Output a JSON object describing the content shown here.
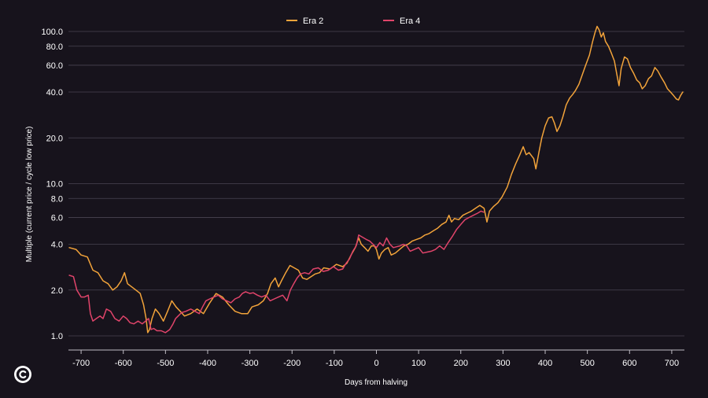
{
  "colors": {
    "background": "#17131c",
    "grid": "#4a4452",
    "axis": "#bfbcc4",
    "text": "#ffffff",
    "era2": "#f2a33a",
    "era4": "#e0446a"
  },
  "chart_data": {
    "type": "line",
    "title": "",
    "xlabel": "Days from halving",
    "ylabel": "Multiple (current price / cycle low price)",
    "yscale": "log",
    "xlim": [
      -730,
      730
    ],
    "ylim": [
      0.95,
      130
    ],
    "grid": true,
    "legend_position": "top-center",
    "x_ticks": [
      -700,
      -600,
      -500,
      -400,
      -300,
      -200,
      -100,
      0,
      100,
      200,
      300,
      400,
      500,
      600,
      700
    ],
    "x_tick_labels": [
      "-700",
      "-600",
      "-500",
      "-400",
      "-300",
      "-200",
      "-100",
      "0",
      "100",
      "200",
      "300",
      "400",
      "500",
      "600",
      "700"
    ],
    "y_ticks": [
      1,
      2,
      4,
      6,
      8,
      10,
      20,
      40,
      60,
      80,
      100
    ],
    "y_tick_labels": [
      "1.0",
      "2.0",
      "4.0",
      "6.0",
      "8.0",
      "10.0",
      "20.0",
      "40.0",
      "60.0",
      "80.0",
      "100.0"
    ],
    "series": [
      {
        "name": "Era 2",
        "color": "#f2a33a",
        "points": [
          [
            -728,
            3.8
          ],
          [
            -712,
            3.7
          ],
          [
            -700,
            3.4
          ],
          [
            -685,
            3.3
          ],
          [
            -672,
            2.7
          ],
          [
            -660,
            2.6
          ],
          [
            -648,
            2.3
          ],
          [
            -636,
            2.2
          ],
          [
            -625,
            2.0
          ],
          [
            -615,
            2.1
          ],
          [
            -605,
            2.3
          ],
          [
            -597,
            2.6
          ],
          [
            -590,
            2.2
          ],
          [
            -580,
            2.1
          ],
          [
            -570,
            2.0
          ],
          [
            -560,
            1.9
          ],
          [
            -552,
            1.6
          ],
          [
            -546,
            1.3
          ],
          [
            -542,
            1.05
          ],
          [
            -538,
            1.1
          ],
          [
            -532,
            1.3
          ],
          [
            -524,
            1.5
          ],
          [
            -515,
            1.4
          ],
          [
            -505,
            1.25
          ],
          [
            -495,
            1.45
          ],
          [
            -485,
            1.7
          ],
          [
            -475,
            1.55
          ],
          [
            -465,
            1.45
          ],
          [
            -455,
            1.35
          ],
          [
            -440,
            1.4
          ],
          [
            -425,
            1.5
          ],
          [
            -410,
            1.4
          ],
          [
            -395,
            1.65
          ],
          [
            -380,
            1.9
          ],
          [
            -365,
            1.8
          ],
          [
            -350,
            1.6
          ],
          [
            -335,
            1.45
          ],
          [
            -320,
            1.4
          ],
          [
            -305,
            1.4
          ],
          [
            -295,
            1.55
          ],
          [
            -280,
            1.6
          ],
          [
            -268,
            1.7
          ],
          [
            -258,
            1.9
          ],
          [
            -250,
            2.2
          ],
          [
            -240,
            2.4
          ],
          [
            -232,
            2.1
          ],
          [
            -225,
            2.3
          ],
          [
            -215,
            2.6
          ],
          [
            -205,
            2.9
          ],
          [
            -195,
            2.8
          ],
          [
            -185,
            2.7
          ],
          [
            -175,
            2.4
          ],
          [
            -165,
            2.35
          ],
          [
            -155,
            2.45
          ],
          [
            -145,
            2.55
          ],
          [
            -135,
            2.6
          ],
          [
            -125,
            2.8
          ],
          [
            -110,
            2.75
          ],
          [
            -95,
            2.95
          ],
          [
            -80,
            2.85
          ],
          [
            -70,
            3.0
          ],
          [
            -60,
            3.4
          ],
          [
            -50,
            3.8
          ],
          [
            -42,
            4.4
          ],
          [
            -36,
            4.0
          ],
          [
            -28,
            3.8
          ],
          [
            -20,
            3.6
          ],
          [
            -12,
            3.9
          ],
          [
            -5,
            3.9
          ],
          [
            0,
            3.7
          ],
          [
            6,
            3.2
          ],
          [
            12,
            3.5
          ],
          [
            20,
            3.7
          ],
          [
            28,
            3.8
          ],
          [
            35,
            3.4
          ],
          [
            45,
            3.5
          ],
          [
            55,
            3.7
          ],
          [
            65,
            3.9
          ],
          [
            75,
            4.0
          ],
          [
            85,
            4.2
          ],
          [
            95,
            4.3
          ],
          [
            105,
            4.4
          ],
          [
            115,
            4.6
          ],
          [
            125,
            4.7
          ],
          [
            135,
            4.9
          ],
          [
            145,
            5.1
          ],
          [
            155,
            5.4
          ],
          [
            165,
            5.6
          ],
          [
            172,
            6.2
          ],
          [
            178,
            5.6
          ],
          [
            185,
            5.9
          ],
          [
            195,
            5.8
          ],
          [
            205,
            6.2
          ],
          [
            215,
            6.4
          ],
          [
            225,
            6.6
          ],
          [
            235,
            6.9
          ],
          [
            245,
            7.2
          ],
          [
            255,
            6.9
          ],
          [
            262,
            5.6
          ],
          [
            268,
            6.6
          ],
          [
            278,
            7.1
          ],
          [
            288,
            7.5
          ],
          [
            298,
            8.2
          ],
          [
            310,
            9.5
          ],
          [
            320,
            11.5
          ],
          [
            330,
            13.5
          ],
          [
            340,
            15.5
          ],
          [
            348,
            17.5
          ],
          [
            355,
            15.5
          ],
          [
            362,
            16.0
          ],
          [
            368,
            15.2
          ],
          [
            373,
            14.6
          ],
          [
            378,
            12.5
          ],
          [
            385,
            16.0
          ],
          [
            392,
            20.0
          ],
          [
            400,
            24.0
          ],
          [
            408,
            27.0
          ],
          [
            416,
            27.5
          ],
          [
            422,
            25.0
          ],
          [
            428,
            22.0
          ],
          [
            435,
            24.0
          ],
          [
            442,
            27.5
          ],
          [
            450,
            33.0
          ],
          [
            458,
            36.5
          ],
          [
            465,
            38.5
          ],
          [
            472,
            41.0
          ],
          [
            480,
            45.0
          ],
          [
            488,
            52.0
          ],
          [
            496,
            60.0
          ],
          [
            505,
            70.0
          ],
          [
            512,
            85.0
          ],
          [
            518,
            98.0
          ],
          [
            523,
            108.0
          ],
          [
            528,
            102.0
          ],
          [
            533,
            92.0
          ],
          [
            538,
            98.0
          ],
          [
            543,
            86.0
          ],
          [
            550,
            80.0
          ],
          [
            557,
            72.0
          ],
          [
            564,
            64.0
          ],
          [
            570,
            52.0
          ],
          [
            575,
            44.0
          ],
          [
            580,
            57.0
          ],
          [
            588,
            68.0
          ],
          [
            595,
            66.0
          ],
          [
            602,
            58.0
          ],
          [
            610,
            53.0
          ],
          [
            617,
            48.0
          ],
          [
            624,
            46.0
          ],
          [
            630,
            42.0
          ],
          [
            637,
            44.0
          ],
          [
            645,
            49.0
          ],
          [
            652,
            51.0
          ],
          [
            660,
            58.0
          ],
          [
            667,
            55.0
          ],
          [
            675,
            50.0
          ],
          [
            683,
            46.0
          ],
          [
            690,
            42.0
          ],
          [
            697,
            40.0
          ],
          [
            704,
            38.0
          ],
          [
            711,
            36.0
          ],
          [
            716,
            35.5
          ],
          [
            721,
            38.0
          ],
          [
            726,
            40.0
          ]
        ]
      },
      {
        "name": "Era 4",
        "color": "#e0446a",
        "points": [
          [
            -728,
            2.5
          ],
          [
            -718,
            2.45
          ],
          [
            -710,
            2.0
          ],
          [
            -700,
            1.8
          ],
          [
            -692,
            1.8
          ],
          [
            -683,
            1.85
          ],
          [
            -678,
            1.4
          ],
          [
            -672,
            1.25
          ],
          [
            -664,
            1.3
          ],
          [
            -655,
            1.35
          ],
          [
            -648,
            1.3
          ],
          [
            -640,
            1.5
          ],
          [
            -630,
            1.45
          ],
          [
            -620,
            1.3
          ],
          [
            -610,
            1.25
          ],
          [
            -600,
            1.35
          ],
          [
            -592,
            1.3
          ],
          [
            -584,
            1.22
          ],
          [
            -575,
            1.2
          ],
          [
            -565,
            1.25
          ],
          [
            -555,
            1.2
          ],
          [
            -547,
            1.25
          ],
          [
            -540,
            1.3
          ],
          [
            -534,
            1.1
          ],
          [
            -528,
            1.12
          ],
          [
            -520,
            1.08
          ],
          [
            -510,
            1.08
          ],
          [
            -500,
            1.05
          ],
          [
            -490,
            1.1
          ],
          [
            -482,
            1.2
          ],
          [
            -476,
            1.3
          ],
          [
            -470,
            1.35
          ],
          [
            -462,
            1.42
          ],
          [
            -452,
            1.45
          ],
          [
            -440,
            1.5
          ],
          [
            -430,
            1.45
          ],
          [
            -420,
            1.4
          ],
          [
            -412,
            1.55
          ],
          [
            -404,
            1.7
          ],
          [
            -395,
            1.75
          ],
          [
            -385,
            1.8
          ],
          [
            -375,
            1.85
          ],
          [
            -365,
            1.75
          ],
          [
            -355,
            1.7
          ],
          [
            -345,
            1.65
          ],
          [
            -335,
            1.75
          ],
          [
            -325,
            1.8
          ],
          [
            -318,
            1.9
          ],
          [
            -310,
            1.95
          ],
          [
            -300,
            1.9
          ],
          [
            -292,
            1.92
          ],
          [
            -282,
            1.85
          ],
          [
            -272,
            1.8
          ],
          [
            -262,
            1.85
          ],
          [
            -252,
            1.7
          ],
          [
            -242,
            1.75
          ],
          [
            -232,
            1.8
          ],
          [
            -222,
            1.85
          ],
          [
            -212,
            1.7
          ],
          [
            -204,
            2.0
          ],
          [
            -196,
            2.2
          ],
          [
            -188,
            2.4
          ],
          [
            -180,
            2.55
          ],
          [
            -170,
            2.6
          ],
          [
            -160,
            2.55
          ],
          [
            -150,
            2.75
          ],
          [
            -138,
            2.8
          ],
          [
            -126,
            2.65
          ],
          [
            -114,
            2.7
          ],
          [
            -102,
            2.85
          ],
          [
            -90,
            2.7
          ],
          [
            -80,
            2.75
          ],
          [
            -72,
            3.0
          ],
          [
            -64,
            3.2
          ],
          [
            -56,
            3.6
          ],
          [
            -48,
            3.9
          ],
          [
            -42,
            4.6
          ],
          [
            -36,
            4.5
          ],
          [
            -30,
            4.4
          ],
          [
            -24,
            4.3
          ],
          [
            -16,
            4.2
          ],
          [
            -8,
            4.0
          ],
          [
            0,
            3.8
          ],
          [
            8,
            4.1
          ],
          [
            16,
            3.9
          ],
          [
            24,
            4.4
          ],
          [
            32,
            4.0
          ],
          [
            40,
            3.8
          ],
          [
            48,
            3.85
          ],
          [
            56,
            3.9
          ],
          [
            64,
            4.0
          ],
          [
            72,
            3.9
          ],
          [
            80,
            3.6
          ],
          [
            90,
            3.7
          ],
          [
            100,
            3.8
          ],
          [
            110,
            3.5
          ],
          [
            120,
            3.55
          ],
          [
            130,
            3.6
          ],
          [
            140,
            3.7
          ],
          [
            150,
            3.9
          ],
          [
            160,
            3.7
          ],
          [
            170,
            4.1
          ],
          [
            180,
            4.5
          ],
          [
            190,
            5.0
          ],
          [
            200,
            5.4
          ],
          [
            210,
            5.8
          ],
          [
            220,
            6.0
          ],
          [
            230,
            6.2
          ],
          [
            240,
            6.4
          ],
          [
            248,
            6.6
          ],
          [
            254,
            6.5
          ]
        ]
      }
    ]
  }
}
